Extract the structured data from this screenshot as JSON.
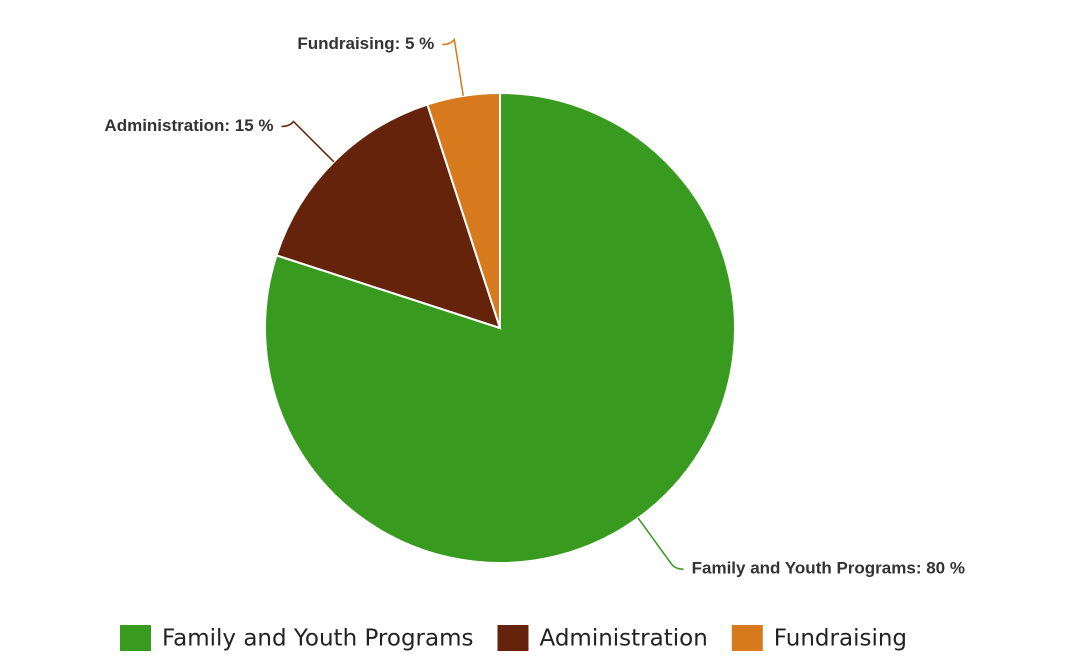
{
  "chart_data": {
    "type": "pie",
    "categories": [
      "Family and Youth Programs",
      "Administration",
      "Fundraising"
    ],
    "values": [
      80,
      15,
      5
    ],
    "value_labels": [
      "Family and Youth Programs: 80 %",
      "Administration: 15 %",
      "Fundraising: 5 %"
    ],
    "colors": [
      "#389a1e",
      "#66230b",
      "#d7791d"
    ],
    "legend": "bottom"
  }
}
